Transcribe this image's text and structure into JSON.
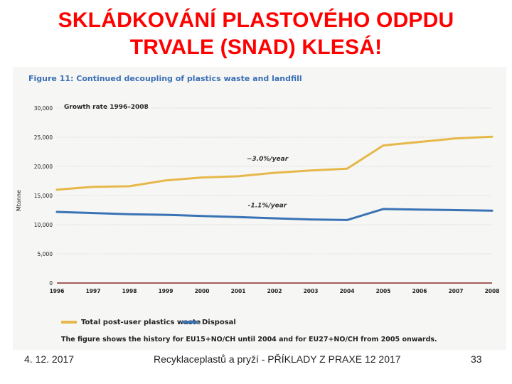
{
  "slide": {
    "title_line1": "SKLÁDKOVÁNÍ PLASTOVÉHO ODPDU",
    "title_line2": "TRVALE (SNAD) KLESÁ!"
  },
  "footer": {
    "date": "4. 12. 2017",
    "center": "Recyklaceplastů a pryží - PŘÍKLADY Z PRAXE 12 2017",
    "page": "33"
  },
  "colors": {
    "title": "#ff0000",
    "figure_title": "#3b6fb6",
    "series_waste": "#e6b84a",
    "series_disposal": "#3a73b5"
  },
  "chart_data": {
    "type": "line",
    "title": "Figure 11: Continued decoupling of plastics waste and landfill",
    "subtitle": "Growth rate 1996–2008",
    "ylabel": "Mtonne",
    "xlabel": "",
    "ylim": [
      0,
      30000
    ],
    "y_ticks": [
      "30,000",
      "25,000",
      "20,000",
      "15,000",
      "10,000",
      "5,000",
      "0"
    ],
    "y_tick_values": [
      30000,
      25000,
      20000,
      15000,
      10000,
      5000,
      0
    ],
    "x": [
      1996,
      1997,
      1998,
      1999,
      2000,
      2001,
      2002,
      2003,
      2004,
      2005,
      2006,
      2007,
      2008
    ],
    "x_tick_labels": [
      "1996",
      "1997",
      "1998",
      "1999",
      "2000",
      "2001",
      "2002",
      "2003",
      "2004",
      "2005",
      "2006",
      "2007",
      "2008"
    ],
    "grid": true,
    "series": [
      {
        "name": "Total post-user plastics waste",
        "color": "#e6b84a",
        "values": [
          16000,
          16500,
          16600,
          17600,
          18100,
          18300,
          18900,
          19300,
          19600,
          23600,
          24200,
          24800,
          25100
        ],
        "annotation": "~3.0%/year",
        "annotation_x": 2002,
        "annotation_y": 21000
      },
      {
        "name": "Disposal",
        "color": "#3a73b5",
        "values": [
          12200,
          12000,
          11800,
          11700,
          11500,
          11300,
          11100,
          10900,
          10800,
          12700,
          12600,
          12500,
          12400
        ],
        "annotation": "-1.1%/year",
        "annotation_x": 2002,
        "annotation_y": 13000
      }
    ],
    "legend_position": "bottom-left",
    "note": "The figure shows the history for EU15+NO/CH until 2004 and for EU27+NO/CH from 2005 onwards."
  }
}
